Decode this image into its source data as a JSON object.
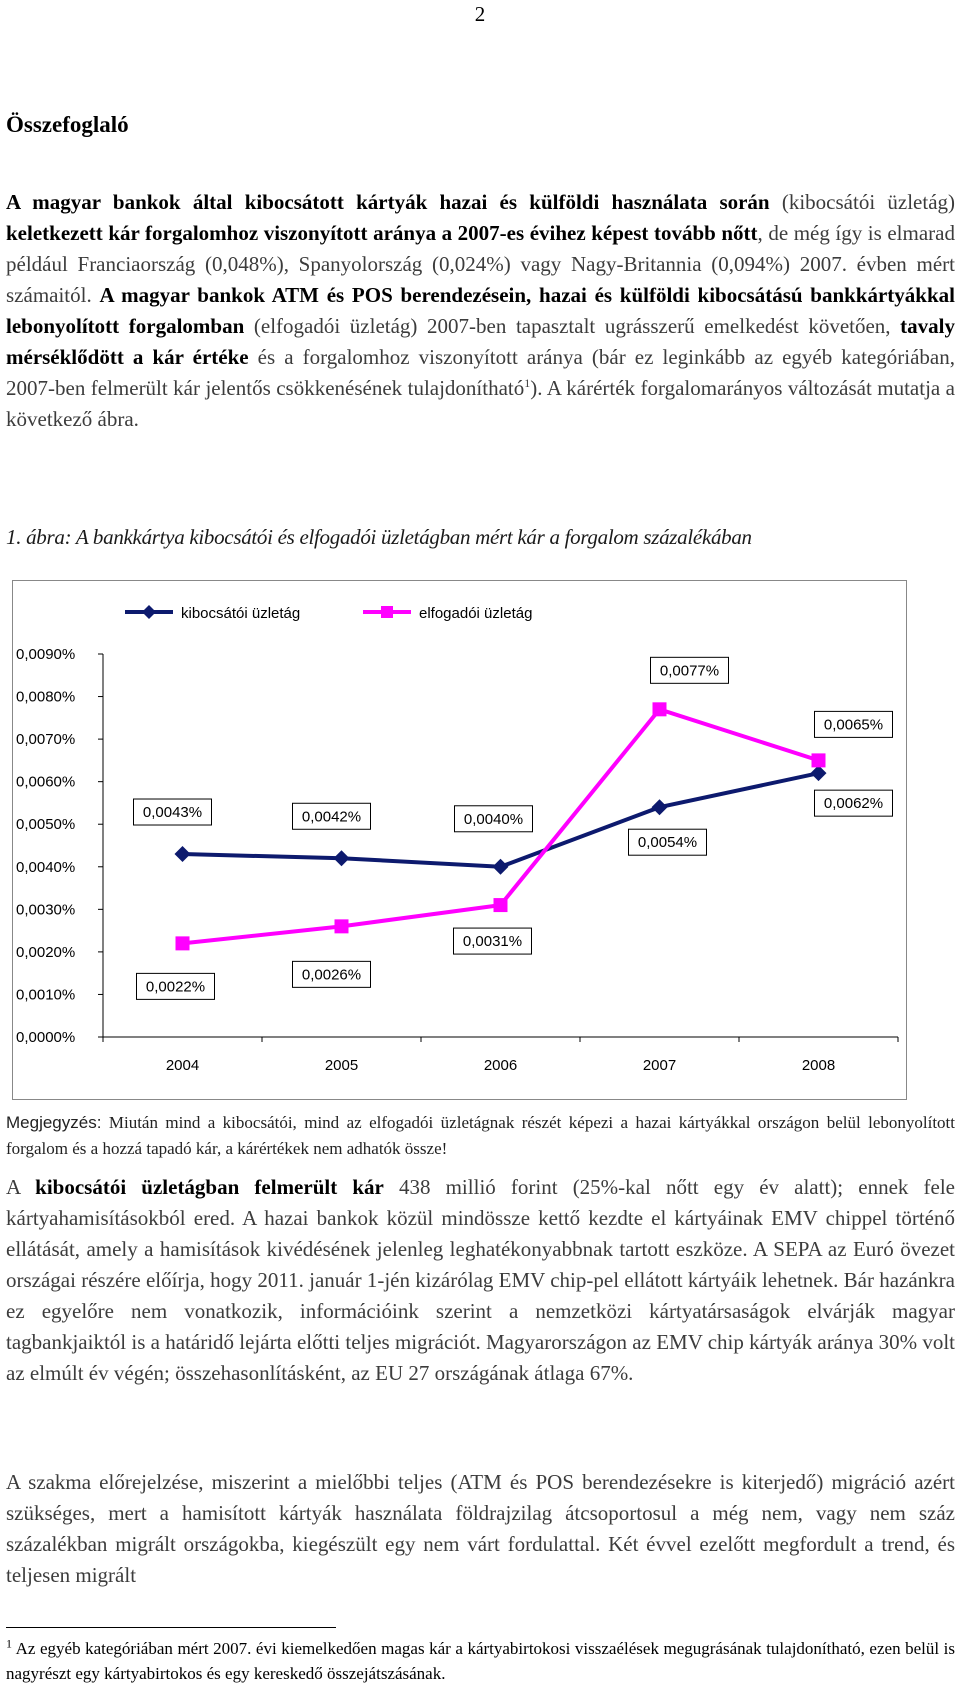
{
  "page_number": "2",
  "heading": "Összefoglaló",
  "para1": {
    "b1": "A magyar bankok által kibocsátott kártyák hazai és külföldi használata során",
    "t1": " (kibocsátói üzletág) ",
    "b2": "keletkezett kár forgalomhoz viszonyított aránya a 2007-es évihez képest tovább nőtt",
    "t2": ", de még így is elmarad például Franciaország (0,048%), Spanyolország (0,024%) vagy Nagy-Britannia (0,094%) 2007. évben mért számaitól. ",
    "b3": "A magyar bankok ATM és POS berendezésein, hazai és külföldi kibocsátású bankkártyákkal lebonyolított forgalomban",
    "t3": " (elfogadói üzletág) 2007-ben tapasztalt ugrásszerű emelkedést követően, ",
    "b4": "tavaly mérséklődött a kár értéke",
    "t4": " és a forgalomhoz viszonyított aránya (bár ez leginkább az egyéb kategóriában, 2007-ben felmerült kár jelentős csökkenésének tulajdonítható",
    "sup": "1",
    "t5": "). A kárérték forgalomarányos változását mutatja a következő ábra."
  },
  "caption": "1. ábra: A bankkártya kibocsátói és elfogadói üzletágban mért kár a forgalom százalékában",
  "chart_data": {
    "type": "line",
    "title": "",
    "xlabel": "",
    "ylabel": "",
    "categories": [
      "2004",
      "2005",
      "2006",
      "2007",
      "2008"
    ],
    "y_ticks": [
      "0,0000%",
      "0,0010%",
      "0,0020%",
      "0,0030%",
      "0,0040%",
      "0,0050%",
      "0,0060%",
      "0,0070%",
      "0,0080%",
      "0,0090%"
    ],
    "ylim": [
      0,
      0.009
    ],
    "grid": false,
    "legend_position": "top",
    "series": [
      {
        "name": "kibocsátói üzletág",
        "color": "#0d1a6e",
        "marker": "diamond",
        "values": [
          0.0043,
          0.0042,
          0.004,
          0.0054,
          0.0062
        ],
        "labels": [
          "0,0043%",
          "0,0042%",
          "0,0040%",
          "0,0054%",
          "0,0062%"
        ]
      },
      {
        "name": "elfogadói üzletág",
        "color": "#ff00ff",
        "marker": "square",
        "values": [
          0.0022,
          0.0026,
          0.0031,
          0.0077,
          0.0065
        ],
        "labels": [
          "0,0022%",
          "0,0026%",
          "0,0031%",
          "0,0077%",
          "0,0065%"
        ]
      }
    ]
  },
  "note": {
    "label": "Megjegyzés:",
    "text": " Miután mind a kibocsátói, mind az elfogadói üzletágnak részét képezi a hazai kártyákkal országon belül lebonyolított forgalom és a hozzá tapadó kár, a kárértékek nem adhatók össze!"
  },
  "para2": {
    "t1": "A ",
    "b1": "kibocsátói üzletágban felmerült kár",
    "t2": " 438 millió forint (25%-kal nőtt egy év alatt); ennek fele kártyahamisításokból ered. A hazai bankok közül mindössze kettő kezdte el kártyáinak EMV chippel történő ellátását, amely a hamisítások kivédésének jelenleg leghatékonyabbnak tartott eszköze. A SEPA az Euró övezet országai részére előírja, hogy 2011. január 1-jén kizárólag EMV chip-pel ellátott kártyáik lehetnek. Bár hazánkra ez egyelőre nem vonatkozik, információink szerint a nemzetközi kártyatársaságok elvárják magyar tagbankjaiktól is a határidő lejárta előtti teljes migrációt. Magyarországon az EMV chip kártyák aránya 30% volt az elmúlt év végén; összehasonlításként, az EU 27 országának átlaga 67%."
  },
  "para3": "A szakma előrejelzése, miszerint a mielőbbi teljes (ATM és POS berendezésekre is kiterjedő) migráció azért szükséges, mert a hamisított kártyák használata földrajzilag átcsoportosul a még nem, vagy nem száz százalékban migrált országokba, kiegészült egy nem várt fordulattal. Két évvel ezelőtt megfordult a trend, és teljesen migrált",
  "footnote": {
    "marker": "1",
    "text": " Az egyéb kategóriában mért 2007. évi kiemelkedően magas kár a kártyabirtokosi visszaélések megugrásának tulajdonítható, ezen belül is nagyrészt egy kártyabirtokos és egy kereskedő összejátszásának."
  }
}
